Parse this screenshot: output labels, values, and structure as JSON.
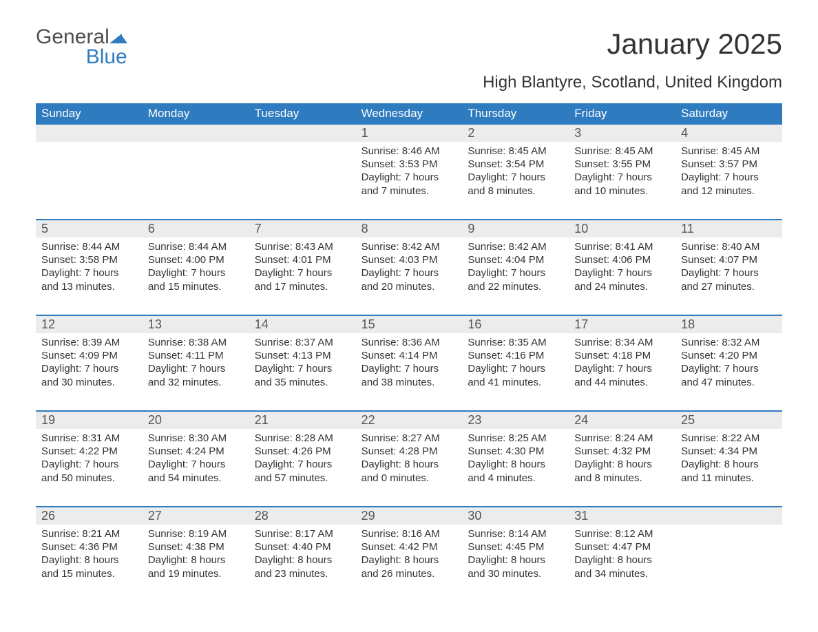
{
  "logo": {
    "text_general": "General",
    "text_blue": "Blue"
  },
  "title": "January 2025",
  "location": "High Blantyre, Scotland, United Kingdom",
  "colors": {
    "header_bg": "#2f7bbf",
    "header_text": "#ffffff",
    "daynum_bg": "#ececec",
    "body_text": "#333333",
    "logo_gray": "#4f4f4f",
    "logo_blue": "#2f7bbf",
    "page_bg": "#ffffff"
  },
  "day_names": [
    "Sunday",
    "Monday",
    "Tuesday",
    "Wednesday",
    "Thursday",
    "Friday",
    "Saturday"
  ],
  "weeks": [
    [
      {
        "day": "",
        "sunrise": "",
        "sunset": "",
        "daylight": ""
      },
      {
        "day": "",
        "sunrise": "",
        "sunset": "",
        "daylight": ""
      },
      {
        "day": "",
        "sunrise": "",
        "sunset": "",
        "daylight": ""
      },
      {
        "day": "1",
        "sunrise": "Sunrise: 8:46 AM",
        "sunset": "Sunset: 3:53 PM",
        "daylight": "Daylight: 7 hours and 7 minutes."
      },
      {
        "day": "2",
        "sunrise": "Sunrise: 8:45 AM",
        "sunset": "Sunset: 3:54 PM",
        "daylight": "Daylight: 7 hours and 8 minutes."
      },
      {
        "day": "3",
        "sunrise": "Sunrise: 8:45 AM",
        "sunset": "Sunset: 3:55 PM",
        "daylight": "Daylight: 7 hours and 10 minutes."
      },
      {
        "day": "4",
        "sunrise": "Sunrise: 8:45 AM",
        "sunset": "Sunset: 3:57 PM",
        "daylight": "Daylight: 7 hours and 12 minutes."
      }
    ],
    [
      {
        "day": "5",
        "sunrise": "Sunrise: 8:44 AM",
        "sunset": "Sunset: 3:58 PM",
        "daylight": "Daylight: 7 hours and 13 minutes."
      },
      {
        "day": "6",
        "sunrise": "Sunrise: 8:44 AM",
        "sunset": "Sunset: 4:00 PM",
        "daylight": "Daylight: 7 hours and 15 minutes."
      },
      {
        "day": "7",
        "sunrise": "Sunrise: 8:43 AM",
        "sunset": "Sunset: 4:01 PM",
        "daylight": "Daylight: 7 hours and 17 minutes."
      },
      {
        "day": "8",
        "sunrise": "Sunrise: 8:42 AM",
        "sunset": "Sunset: 4:03 PM",
        "daylight": "Daylight: 7 hours and 20 minutes."
      },
      {
        "day": "9",
        "sunrise": "Sunrise: 8:42 AM",
        "sunset": "Sunset: 4:04 PM",
        "daylight": "Daylight: 7 hours and 22 minutes."
      },
      {
        "day": "10",
        "sunrise": "Sunrise: 8:41 AM",
        "sunset": "Sunset: 4:06 PM",
        "daylight": "Daylight: 7 hours and 24 minutes."
      },
      {
        "day": "11",
        "sunrise": "Sunrise: 8:40 AM",
        "sunset": "Sunset: 4:07 PM",
        "daylight": "Daylight: 7 hours and 27 minutes."
      }
    ],
    [
      {
        "day": "12",
        "sunrise": "Sunrise: 8:39 AM",
        "sunset": "Sunset: 4:09 PM",
        "daylight": "Daylight: 7 hours and 30 minutes."
      },
      {
        "day": "13",
        "sunrise": "Sunrise: 8:38 AM",
        "sunset": "Sunset: 4:11 PM",
        "daylight": "Daylight: 7 hours and 32 minutes."
      },
      {
        "day": "14",
        "sunrise": "Sunrise: 8:37 AM",
        "sunset": "Sunset: 4:13 PM",
        "daylight": "Daylight: 7 hours and 35 minutes."
      },
      {
        "day": "15",
        "sunrise": "Sunrise: 8:36 AM",
        "sunset": "Sunset: 4:14 PM",
        "daylight": "Daylight: 7 hours and 38 minutes."
      },
      {
        "day": "16",
        "sunrise": "Sunrise: 8:35 AM",
        "sunset": "Sunset: 4:16 PM",
        "daylight": "Daylight: 7 hours and 41 minutes."
      },
      {
        "day": "17",
        "sunrise": "Sunrise: 8:34 AM",
        "sunset": "Sunset: 4:18 PM",
        "daylight": "Daylight: 7 hours and 44 minutes."
      },
      {
        "day": "18",
        "sunrise": "Sunrise: 8:32 AM",
        "sunset": "Sunset: 4:20 PM",
        "daylight": "Daylight: 7 hours and 47 minutes."
      }
    ],
    [
      {
        "day": "19",
        "sunrise": "Sunrise: 8:31 AM",
        "sunset": "Sunset: 4:22 PM",
        "daylight": "Daylight: 7 hours and 50 minutes."
      },
      {
        "day": "20",
        "sunrise": "Sunrise: 8:30 AM",
        "sunset": "Sunset: 4:24 PM",
        "daylight": "Daylight: 7 hours and 54 minutes."
      },
      {
        "day": "21",
        "sunrise": "Sunrise: 8:28 AM",
        "sunset": "Sunset: 4:26 PM",
        "daylight": "Daylight: 7 hours and 57 minutes."
      },
      {
        "day": "22",
        "sunrise": "Sunrise: 8:27 AM",
        "sunset": "Sunset: 4:28 PM",
        "daylight": "Daylight: 8 hours and 0 minutes."
      },
      {
        "day": "23",
        "sunrise": "Sunrise: 8:25 AM",
        "sunset": "Sunset: 4:30 PM",
        "daylight": "Daylight: 8 hours and 4 minutes."
      },
      {
        "day": "24",
        "sunrise": "Sunrise: 8:24 AM",
        "sunset": "Sunset: 4:32 PM",
        "daylight": "Daylight: 8 hours and 8 minutes."
      },
      {
        "day": "25",
        "sunrise": "Sunrise: 8:22 AM",
        "sunset": "Sunset: 4:34 PM",
        "daylight": "Daylight: 8 hours and 11 minutes."
      }
    ],
    [
      {
        "day": "26",
        "sunrise": "Sunrise: 8:21 AM",
        "sunset": "Sunset: 4:36 PM",
        "daylight": "Daylight: 8 hours and 15 minutes."
      },
      {
        "day": "27",
        "sunrise": "Sunrise: 8:19 AM",
        "sunset": "Sunset: 4:38 PM",
        "daylight": "Daylight: 8 hours and 19 minutes."
      },
      {
        "day": "28",
        "sunrise": "Sunrise: 8:17 AM",
        "sunset": "Sunset: 4:40 PM",
        "daylight": "Daylight: 8 hours and 23 minutes."
      },
      {
        "day": "29",
        "sunrise": "Sunrise: 8:16 AM",
        "sunset": "Sunset: 4:42 PM",
        "daylight": "Daylight: 8 hours and 26 minutes."
      },
      {
        "day": "30",
        "sunrise": "Sunrise: 8:14 AM",
        "sunset": "Sunset: 4:45 PM",
        "daylight": "Daylight: 8 hours and 30 minutes."
      },
      {
        "day": "31",
        "sunrise": "Sunrise: 8:12 AM",
        "sunset": "Sunset: 4:47 PM",
        "daylight": "Daylight: 8 hours and 34 minutes."
      },
      {
        "day": "",
        "sunrise": "",
        "sunset": "",
        "daylight": ""
      }
    ]
  ]
}
